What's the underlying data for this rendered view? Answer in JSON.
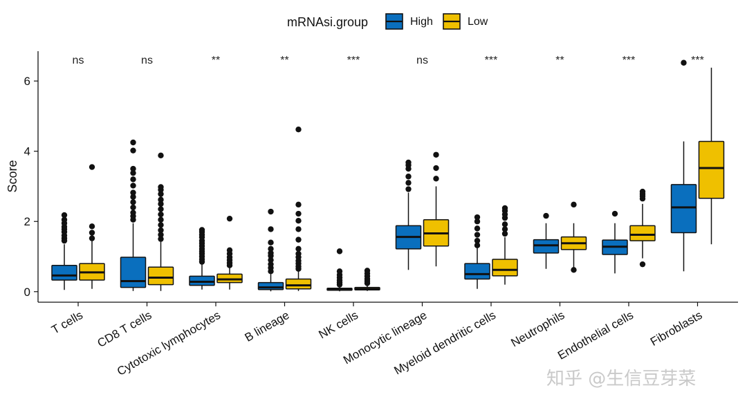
{
  "chart_data": {
    "type": "box",
    "title": "",
    "xlabel": "",
    "ylabel": "Score",
    "ylim": [
      -0.3,
      6.85
    ],
    "yticks": [
      0,
      2,
      4,
      6
    ],
    "grid": false,
    "legend": {
      "title": "mRNAsi.group",
      "placement": "top-center",
      "entries": [
        {
          "name": "High",
          "color": "#0a6fbe"
        },
        {
          "name": "Low",
          "color": "#efc000"
        }
      ]
    },
    "categories": [
      "T cells",
      "CD8 T cells",
      "Cytotoxic lymphocytes",
      "B lineage",
      "NK cells",
      "Monocytic lineage",
      "Myeloid dendritic cells",
      "Neutrophils",
      "Endothelial cells",
      "Fibroblasts"
    ],
    "significance": [
      "ns",
      "ns",
      "**",
      "**",
      "***",
      "ns",
      "***",
      "**",
      "***",
      "***"
    ],
    "series": [
      {
        "name": "High",
        "color": "#0a6fbe",
        "boxes": [
          {
            "min": 0.05,
            "q1": 0.33,
            "median": 0.46,
            "q3": 0.75,
            "max": 1.35,
            "outliers": [
              1.45,
              1.52,
              1.6,
              1.7,
              1.78,
              1.85,
              1.95,
              2.05,
              2.18
            ]
          },
          {
            "min": 0.02,
            "q1": 0.12,
            "median": 0.3,
            "q3": 0.98,
            "max": 1.95,
            "outliers": [
              2.05,
              2.15,
              2.25,
              2.4,
              2.55,
              2.7,
              2.82,
              3.02,
              3.2,
              3.38,
              3.5,
              4.02,
              4.25
            ]
          },
          {
            "min": 0.06,
            "q1": 0.18,
            "median": 0.28,
            "q3": 0.44,
            "max": 0.78,
            "outliers": [
              0.85,
              0.92,
              1.0,
              1.08,
              1.15,
              1.22,
              1.3,
              1.38,
              1.45,
              1.55,
              1.62,
              1.7,
              1.76
            ]
          },
          {
            "min": 0.01,
            "q1": 0.06,
            "median": 0.12,
            "q3": 0.26,
            "max": 0.5,
            "outliers": [
              0.58,
              0.68,
              0.78,
              0.9,
              1.02,
              1.1,
              1.22,
              1.4,
              1.78,
              2.28
            ]
          },
          {
            "min": 0.01,
            "q1": 0.04,
            "median": 0.06,
            "q3": 0.1,
            "max": 0.16,
            "outliers": [
              0.2,
              0.26,
              0.32,
              0.4,
              0.48,
              0.58,
              1.15
            ]
          },
          {
            "min": 0.62,
            "q1": 1.22,
            "median": 1.56,
            "q3": 1.88,
            "max": 2.82,
            "outliers": [
              2.92,
              3.1,
              3.28,
              3.5,
              3.6,
              3.68
            ]
          },
          {
            "min": 0.08,
            "q1": 0.36,
            "median": 0.5,
            "q3": 0.8,
            "max": 1.25,
            "outliers": [
              1.32,
              1.45,
              1.62,
              1.8,
              2.0,
              2.12
            ]
          },
          {
            "min": 0.65,
            "q1": 1.1,
            "median": 1.32,
            "q3": 1.48,
            "max": 1.95,
            "outliers": [
              2.16
            ]
          },
          {
            "min": 0.52,
            "q1": 1.06,
            "median": 1.28,
            "q3": 1.47,
            "max": 1.95,
            "outliers": [
              2.22
            ]
          },
          {
            "min": 0.58,
            "q1": 1.68,
            "median": 2.4,
            "q3": 3.05,
            "max": 4.28,
            "outliers": [
              6.52
            ]
          }
        ]
      },
      {
        "name": "Low",
        "color": "#efc000",
        "boxes": [
          {
            "min": 0.08,
            "q1": 0.33,
            "median": 0.55,
            "q3": 0.8,
            "max": 1.45,
            "outliers": [
              1.52,
              1.68,
              1.86,
              3.55
            ]
          },
          {
            "min": 0.02,
            "q1": 0.2,
            "median": 0.4,
            "q3": 0.7,
            "max": 1.42,
            "outliers": [
              1.5,
              1.62,
              1.75,
              1.9,
              2.05,
              2.2,
              2.35,
              2.5,
              2.62,
              2.78,
              2.9,
              2.98,
              3.88
            ]
          },
          {
            "min": 0.06,
            "q1": 0.26,
            "median": 0.35,
            "q3": 0.5,
            "max": 0.7,
            "outliers": [
              0.75,
              0.82,
              0.9,
              0.98,
              1.08,
              1.18,
              2.08
            ]
          },
          {
            "min": 0.02,
            "q1": 0.08,
            "median": 0.18,
            "q3": 0.36,
            "max": 0.6,
            "outliers": [
              0.65,
              0.72,
              0.8,
              0.88,
              0.98,
              1.08,
              1.22,
              1.48,
              1.78,
              2.02,
              2.22,
              2.48,
              4.62
            ]
          },
          {
            "min": 0.02,
            "q1": 0.05,
            "median": 0.08,
            "q3": 0.12,
            "max": 0.18,
            "outliers": [
              0.24,
              0.3,
              0.36,
              0.44,
              0.52,
              0.6
            ]
          },
          {
            "min": 0.72,
            "q1": 1.3,
            "median": 1.66,
            "q3": 2.05,
            "max": 3.0,
            "outliers": [
              3.22,
              3.52,
              3.9
            ]
          },
          {
            "min": 0.2,
            "q1": 0.45,
            "median": 0.62,
            "q3": 0.92,
            "max": 1.55,
            "outliers": [
              1.65,
              1.78,
              1.92,
              2.1,
              2.2,
              2.3,
              2.38
            ]
          },
          {
            "min": 0.62,
            "q1": 1.2,
            "median": 1.38,
            "q3": 1.56,
            "max": 1.95,
            "outliers": [
              0.62,
              2.48
            ]
          },
          {
            "min": 0.95,
            "q1": 1.45,
            "median": 1.62,
            "q3": 1.88,
            "max": 2.5,
            "outliers": [
              0.78,
              2.65,
              2.72,
              2.78,
              2.85
            ]
          },
          {
            "min": 1.35,
            "q1": 2.66,
            "median": 3.52,
            "q3": 4.28,
            "max": 6.38,
            "outliers": []
          }
        ]
      }
    ]
  },
  "watermark": {
    "text": "知乎 @生信豆芽菜"
  }
}
